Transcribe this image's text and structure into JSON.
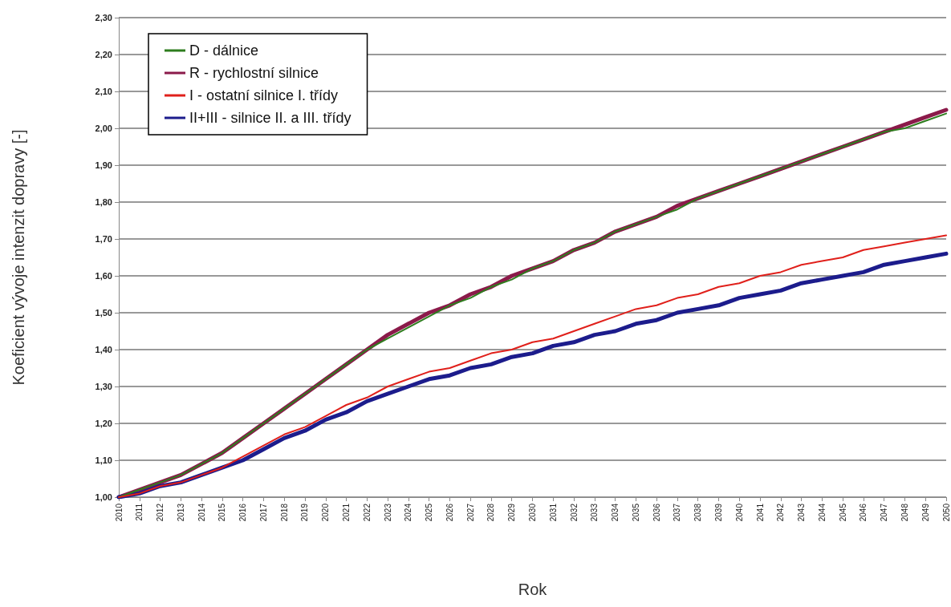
{
  "chart_data": {
    "type": "line",
    "xlabel": "Rok",
    "ylabel": "Koeficient vývoje intenzit dopravy [-]",
    "categories": [
      "2010",
      "2011",
      "2012",
      "2013",
      "2014",
      "2015",
      "2016",
      "2017",
      "2018",
      "2019",
      "2020",
      "2021",
      "2022",
      "2023",
      "2024",
      "2025",
      "2026",
      "2027",
      "2028",
      "2029",
      "2030",
      "2031",
      "2032",
      "2033",
      "2034",
      "2035",
      "2036",
      "2037",
      "2038",
      "2039",
      "2040",
      "2041",
      "2042",
      "2043",
      "2044",
      "2045",
      "2046",
      "2047",
      "2048",
      "2049",
      "2050"
    ],
    "series": [
      {
        "name": "D - dálnice",
        "color": "#2e7d1e",
        "values": [
          1.0,
          1.02,
          1.04,
          1.06,
          1.09,
          1.12,
          1.16,
          1.2,
          1.24,
          1.28,
          1.32,
          1.36,
          1.4,
          1.43,
          1.46,
          1.49,
          1.52,
          1.54,
          1.57,
          1.59,
          1.62,
          1.64,
          1.67,
          1.69,
          1.72,
          1.74,
          1.76,
          1.78,
          1.81,
          1.83,
          1.85,
          1.87,
          1.89,
          1.91,
          1.93,
          1.95,
          1.97,
          1.99,
          2.0,
          2.02,
          2.04
        ]
      },
      {
        "name": "R - rychlostní silnice",
        "color": "#8b1a4a",
        "values": [
          1.0,
          1.02,
          1.04,
          1.06,
          1.09,
          1.12,
          1.16,
          1.2,
          1.24,
          1.28,
          1.32,
          1.36,
          1.4,
          1.44,
          1.47,
          1.5,
          1.52,
          1.55,
          1.57,
          1.6,
          1.62,
          1.64,
          1.67,
          1.69,
          1.72,
          1.74,
          1.76,
          1.79,
          1.81,
          1.83,
          1.85,
          1.87,
          1.89,
          1.91,
          1.93,
          1.95,
          1.97,
          1.99,
          2.01,
          2.03,
          2.05
        ]
      },
      {
        "name": "I - ostatní silnice I. třídy",
        "color": "#e0201b",
        "values": [
          1.0,
          1.01,
          1.03,
          1.04,
          1.06,
          1.08,
          1.11,
          1.14,
          1.17,
          1.19,
          1.22,
          1.25,
          1.27,
          1.3,
          1.32,
          1.34,
          1.35,
          1.37,
          1.39,
          1.4,
          1.42,
          1.43,
          1.45,
          1.47,
          1.49,
          1.51,
          1.52,
          1.54,
          1.55,
          1.57,
          1.58,
          1.6,
          1.61,
          1.63,
          1.64,
          1.65,
          1.67,
          1.68,
          1.69,
          1.7,
          1.71
        ]
      },
      {
        "name": "II+III - silnice II. a III. třídy",
        "color": "#1c1c8c",
        "values": [
          1.0,
          1.01,
          1.03,
          1.04,
          1.06,
          1.08,
          1.1,
          1.13,
          1.16,
          1.18,
          1.21,
          1.23,
          1.26,
          1.28,
          1.3,
          1.32,
          1.33,
          1.35,
          1.36,
          1.38,
          1.39,
          1.41,
          1.42,
          1.44,
          1.45,
          1.47,
          1.48,
          1.5,
          1.51,
          1.52,
          1.54,
          1.55,
          1.56,
          1.58,
          1.59,
          1.6,
          1.61,
          1.63,
          1.64,
          1.65,
          1.66
        ]
      }
    ],
    "ylim": [
      1.0,
      2.3
    ],
    "yticks": [
      {
        "value": 1.0,
        "label": "1,00"
      },
      {
        "value": 1.1,
        "label": "1,10"
      },
      {
        "value": 1.2,
        "label": "1,20"
      },
      {
        "value": 1.3,
        "label": "1,30"
      },
      {
        "value": 1.4,
        "label": "1,40"
      },
      {
        "value": 1.5,
        "label": "1,50"
      },
      {
        "value": 1.6,
        "label": "1,60"
      },
      {
        "value": 1.7,
        "label": "1,70"
      },
      {
        "value": 1.8,
        "label": "1,80"
      },
      {
        "value": 1.9,
        "label": "1,90"
      },
      {
        "value": 2.0,
        "label": "2,00"
      },
      {
        "value": 2.1,
        "label": "2,10"
      },
      {
        "value": 2.2,
        "label": "2,20"
      },
      {
        "value": 2.3,
        "label": "2,30"
      }
    ],
    "grid": "y",
    "legend": "top left",
    "marker": "none",
    "line_style": "solid"
  }
}
